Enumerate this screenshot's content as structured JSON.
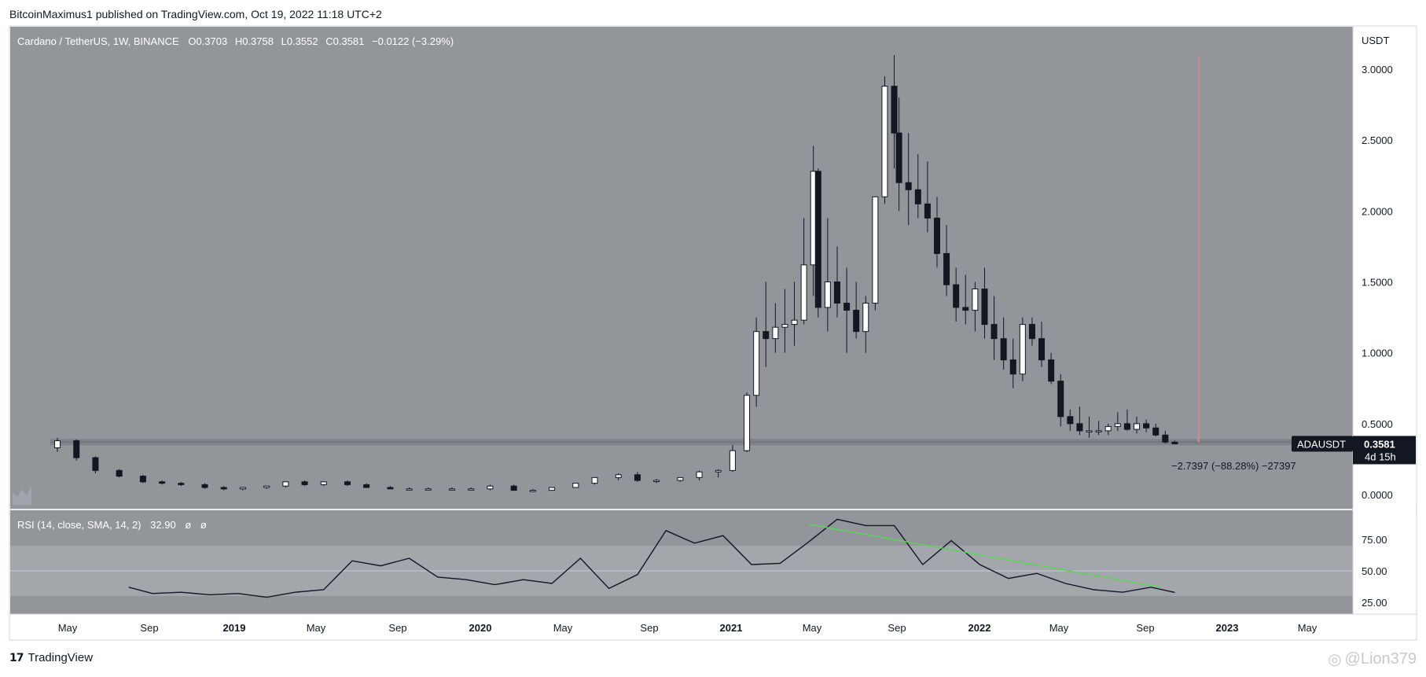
{
  "header": {
    "publisher_line": "BitcoinMaximus1 published on TradingView.com, Oct 19, 2022 11:18 UTC+2"
  },
  "legend": {
    "symbol": "Cardano / TetherUS, 1W, BINANCE",
    "o_label": "O",
    "o_value": "0.3703",
    "h_label": "H",
    "h_value": "0.3758",
    "l_label": "L",
    "l_value": "0.3552",
    "c_label": "C",
    "c_value": "0.3581",
    "change": "−0.0122 (−3.29%)"
  },
  "price_axis": {
    "unit": "USDT",
    "ticks": [
      "3.0000",
      "2.5000",
      "2.0000",
      "1.5000",
      "1.0000",
      "0.5000",
      "0.0000"
    ],
    "tick_values": [
      3.0,
      2.5,
      2.0,
      1.5,
      1.0,
      0.5,
      0.0
    ]
  },
  "last_price": {
    "symbol": "ADAUSDT",
    "value": "0.3581",
    "countdown": "4d 15h"
  },
  "measure_label": "−2.7397 (−88.28%) −27397",
  "time_axis": {
    "labels": [
      "May",
      "Sep",
      "2019",
      "May",
      "Sep",
      "2020",
      "May",
      "Sep",
      "2021",
      "May",
      "Sep",
      "2022",
      "May",
      "Sep",
      "2023",
      "May"
    ],
    "bold": [
      "2019",
      "2020",
      "2021",
      "2022",
      "2023"
    ]
  },
  "rsi_panel": {
    "legend": "RSI (14, close, SMA, 14, 2)",
    "value": "32.90",
    "na1": "ø",
    "na2": "ø",
    "ticks": [
      "75.00",
      "50.00",
      "25.00"
    ],
    "tick_values": [
      75,
      50,
      25
    ]
  },
  "footer": {
    "logo_text": "TradingView",
    "watermark": "@Lion379"
  },
  "colors": {
    "pane_bg": "#929599",
    "rsi_band": "#a3a6ab",
    "up_candle": "#ffffff",
    "down_candle": "#131722",
    "support_line": "#7a7d83",
    "vertical_marker": "#c98a8a",
    "trendline": "#5fd15f"
  },
  "chart_data": [
    {
      "type": "candlestick",
      "title": "Cardano / TetherUS, 1W, BINANCE",
      "ylabel": "USDT",
      "ylim": [
        0,
        3.1
      ],
      "x_ticks": [
        "May",
        "Sep",
        "2019",
        "May",
        "Sep",
        "2020",
        "May",
        "Sep",
        "2021",
        "May",
        "Sep",
        "2022",
        "May",
        "Sep",
        "2023",
        "May"
      ],
      "horizontal_level": 0.3703,
      "series": [
        {
          "name": "ADAUSDT",
          "x": [
            "2018-04-16",
            "2018-05-14",
            "2018-06-11",
            "2018-07-16",
            "2018-08-20",
            "2018-09-17",
            "2018-10-15",
            "2018-11-19",
            "2018-12-17",
            "2019-01-14",
            "2019-02-18",
            "2019-03-18",
            "2019-04-15",
            "2019-05-13",
            "2019-06-17",
            "2019-07-15",
            "2019-08-19",
            "2019-09-16",
            "2019-10-14",
            "2019-11-18",
            "2019-12-16",
            "2020-01-13",
            "2020-02-17",
            "2020-03-16",
            "2020-04-13",
            "2020-05-18",
            "2020-06-15",
            "2020-07-20",
            "2020-08-17",
            "2020-09-14",
            "2020-10-19",
            "2020-11-16",
            "2020-12-14",
            "2021-01-04",
            "2021-01-25",
            "2021-02-08",
            "2021-02-22",
            "2021-03-08",
            "2021-03-22",
            "2021-04-05",
            "2021-04-19",
            "2021-05-03",
            "2021-05-10",
            "2021-05-24",
            "2021-06-07",
            "2021-06-21",
            "2021-07-05",
            "2021-07-19",
            "2021-08-02",
            "2021-08-16",
            "2021-08-30",
            "2021-09-06",
            "2021-09-20",
            "2021-10-04",
            "2021-10-18",
            "2021-11-01",
            "2021-11-15",
            "2021-11-29",
            "2021-12-13",
            "2021-12-27",
            "2022-01-10",
            "2022-01-24",
            "2022-02-07",
            "2022-02-21",
            "2022-03-07",
            "2022-03-21",
            "2022-04-04",
            "2022-04-18",
            "2022-05-02",
            "2022-05-16",
            "2022-05-30",
            "2022-06-13",
            "2022-06-27",
            "2022-07-11",
            "2022-07-25",
            "2022-08-08",
            "2022-08-22",
            "2022-09-05",
            "2022-09-19",
            "2022-10-03",
            "2022-10-17"
          ],
          "open": [
            0.33,
            0.38,
            0.26,
            0.17,
            0.13,
            0.09,
            0.08,
            0.07,
            0.05,
            0.04,
            0.05,
            0.06,
            0.09,
            0.07,
            0.09,
            0.07,
            0.05,
            0.04,
            0.04,
            0.04,
            0.04,
            0.04,
            0.06,
            0.03,
            0.03,
            0.05,
            0.08,
            0.12,
            0.14,
            0.1,
            0.1,
            0.12,
            0.16,
            0.17,
            0.31,
            0.7,
            1.15,
            1.1,
            1.18,
            1.2,
            1.23,
            1.62,
            2.28,
            1.32,
            1.5,
            1.35,
            1.3,
            1.15,
            1.35,
            2.1,
            2.88,
            2.55,
            2.2,
            2.15,
            2.05,
            1.95,
            1.7,
            1.48,
            1.32,
            1.3,
            1.45,
            1.2,
            1.1,
            0.95,
            0.85,
            1.2,
            1.1,
            0.95,
            0.8,
            0.55,
            0.5,
            0.45,
            0.45,
            0.45,
            0.48,
            0.5,
            0.46,
            0.5,
            0.47,
            0.42,
            0.37
          ],
          "high": [
            0.4,
            0.39,
            0.27,
            0.18,
            0.14,
            0.1,
            0.09,
            0.08,
            0.06,
            0.05,
            0.06,
            0.09,
            0.1,
            0.09,
            0.1,
            0.08,
            0.06,
            0.05,
            0.05,
            0.05,
            0.05,
            0.07,
            0.07,
            0.04,
            0.05,
            0.08,
            0.1,
            0.15,
            0.16,
            0.11,
            0.11,
            0.17,
            0.18,
            0.35,
            0.72,
            1.25,
            1.5,
            1.35,
            1.45,
            1.5,
            1.95,
            2.46,
            2.3,
            1.95,
            1.75,
            1.6,
            1.5,
            1.4,
            2.1,
            2.95,
            3.1,
            2.8,
            2.55,
            2.4,
            2.35,
            2.1,
            1.9,
            1.6,
            1.55,
            1.5,
            1.6,
            1.4,
            1.25,
            1.1,
            1.25,
            1.25,
            1.22,
            1.0,
            0.85,
            0.6,
            0.62,
            0.55,
            0.52,
            0.5,
            0.58,
            0.6,
            0.55,
            0.53,
            0.5,
            0.45,
            0.38
          ],
          "low": [
            0.3,
            0.24,
            0.15,
            0.12,
            0.08,
            0.07,
            0.06,
            0.04,
            0.03,
            0.03,
            0.04,
            0.05,
            0.06,
            0.06,
            0.06,
            0.05,
            0.04,
            0.03,
            0.03,
            0.03,
            0.03,
            0.03,
            0.03,
            0.02,
            0.03,
            0.05,
            0.07,
            0.1,
            0.09,
            0.08,
            0.09,
            0.1,
            0.12,
            0.16,
            0.3,
            0.62,
            0.9,
            1.0,
            1.0,
            1.05,
            1.2,
            1.4,
            1.25,
            1.15,
            1.25,
            1.0,
            1.1,
            1.0,
            1.3,
            2.05,
            2.3,
            2.0,
            1.9,
            1.95,
            1.85,
            1.6,
            1.4,
            1.22,
            1.2,
            1.15,
            1.1,
            0.95,
            0.88,
            0.75,
            0.8,
            1.05,
            0.9,
            0.78,
            0.48,
            0.45,
            0.42,
            0.4,
            0.42,
            0.42,
            0.45,
            0.45,
            0.43,
            0.44,
            0.41,
            0.36,
            0.355
          ],
          "close": [
            0.38,
            0.26,
            0.17,
            0.13,
            0.09,
            0.08,
            0.07,
            0.05,
            0.04,
            0.05,
            0.06,
            0.09,
            0.07,
            0.09,
            0.07,
            0.05,
            0.04,
            0.04,
            0.04,
            0.04,
            0.04,
            0.06,
            0.03,
            0.03,
            0.05,
            0.08,
            0.12,
            0.14,
            0.1,
            0.1,
            0.12,
            0.16,
            0.17,
            0.31,
            0.7,
            1.15,
            1.1,
            1.18,
            1.2,
            1.23,
            1.62,
            2.28,
            1.32,
            1.5,
            1.35,
            1.3,
            1.15,
            1.35,
            2.1,
            2.88,
            2.55,
            2.2,
            2.15,
            2.05,
            1.95,
            1.7,
            1.48,
            1.32,
            1.3,
            1.45,
            1.2,
            1.1,
            0.95,
            0.85,
            1.2,
            1.1,
            0.95,
            0.8,
            0.55,
            0.5,
            0.45,
            0.45,
            0.45,
            0.48,
            0.5,
            0.46,
            0.5,
            0.47,
            0.42,
            0.37,
            0.3581
          ]
        }
      ]
    },
    {
      "type": "line",
      "title": "RSI (14, close, SMA, 14, 2)",
      "ylim": [
        20,
        95
      ],
      "series": [
        {
          "name": "RSI",
          "x": [
            "2018-07-30",
            "2018-09-03",
            "2018-10-15",
            "2018-11-26",
            "2019-01-07",
            "2019-02-18",
            "2019-04-01",
            "2019-05-13",
            "2019-06-24",
            "2019-08-05",
            "2019-09-16",
            "2019-10-28",
            "2019-12-09",
            "2020-01-20",
            "2020-03-02",
            "2020-04-13",
            "2020-05-25",
            "2020-07-06",
            "2020-08-17",
            "2020-09-28",
            "2020-11-09",
            "2020-12-21",
            "2021-02-01",
            "2021-03-15",
            "2021-04-26",
            "2021-06-07",
            "2021-07-19",
            "2021-08-30",
            "2021-10-11",
            "2021-11-22",
            "2022-01-03",
            "2022-02-14",
            "2022-03-28",
            "2022-05-09",
            "2022-06-20",
            "2022-08-01",
            "2022-09-12",
            "2022-10-17"
          ],
          "values": [
            37,
            32,
            33,
            31,
            32,
            29,
            33,
            35,
            58,
            54,
            60,
            45,
            43,
            39,
            43,
            40,
            60,
            36,
            47,
            82,
            72,
            78,
            55,
            56,
            73,
            91,
            86,
            86,
            55,
            74,
            55,
            44,
            48,
            40,
            35,
            33,
            37,
            32.9
          ]
        },
        {
          "name": "Trendline",
          "x": [
            "2021-04-26",
            "2022-09-26"
          ],
          "values": [
            87,
            37
          ]
        }
      ]
    }
  ]
}
